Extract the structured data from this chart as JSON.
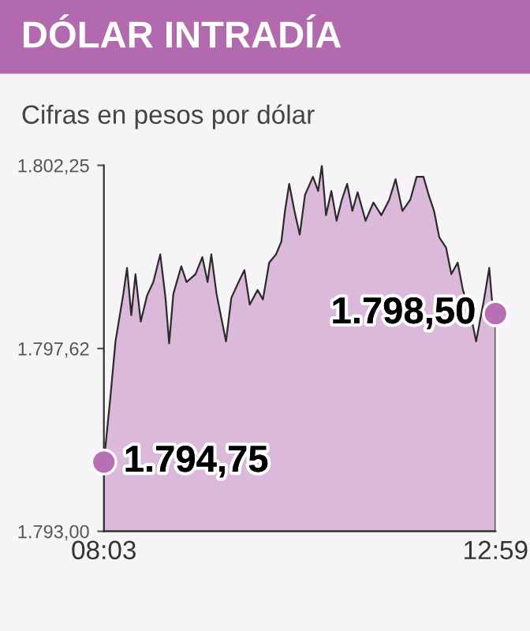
{
  "chart_data": {
    "type": "area",
    "title": "DÓLAR INTRADÍA",
    "subtitle": "Cifras en pesos por dólar",
    "x": [
      8.05,
      8.13,
      8.196,
      8.295,
      8.342,
      8.395,
      8.448,
      8.514,
      8.594,
      8.673,
      8.76,
      8.826,
      8.872,
      8.925,
      9.025,
      9.091,
      9.204,
      9.29,
      9.356,
      9.403,
      9.469,
      9.522,
      9.588,
      9.655,
      9.754,
      9.82,
      9.887,
      9.986,
      10.053,
      10.132,
      10.218,
      10.285,
      10.331,
      10.384,
      10.45,
      10.517,
      10.583,
      10.683,
      10.749,
      10.795,
      10.848,
      10.915,
      10.981,
      11.047,
      11.114,
      11.18,
      11.246,
      11.346,
      11.445,
      11.545,
      11.644,
      11.724,
      11.81,
      11.909,
      11.989,
      12.075,
      12.141,
      12.208,
      12.274,
      12.36,
      12.426,
      12.506,
      12.572,
      12.672,
      12.738,
      12.785,
      12.838,
      12.904,
      12.937,
      12.983
    ],
    "series": [
      {
        "color": "#dbb9da",
        "values": [
          1794.75,
          1796.35,
          1797.8,
          1799.0,
          1799.66,
          1798.46,
          1799.5,
          1798.3,
          1798.96,
          1799.3,
          1800.0,
          1798.9,
          1797.75,
          1799.0,
          1799.7,
          1799.3,
          1799.5,
          1799.93,
          1799.3,
          1800.0,
          1799.0,
          1798.46,
          1797.8,
          1798.9,
          1799.33,
          1799.6,
          1798.73,
          1799.1,
          1798.86,
          1799.79,
          1800.0,
          1800.32,
          1801.1,
          1801.78,
          1801.1,
          1800.5,
          1801.5,
          1801.96,
          1801.6,
          1802.25,
          1800.99,
          1801.6,
          1800.85,
          1801.38,
          1801.78,
          1801.1,
          1801.57,
          1800.85,
          1801.31,
          1800.99,
          1801.38,
          1801.9,
          1801.1,
          1801.38,
          1801.96,
          1801.96,
          1801.5,
          1801.1,
          1800.43,
          1800.17,
          1799.5,
          1799.79,
          1799.1,
          1798.46,
          1797.8,
          1798.3,
          1798.86,
          1799.66,
          1798.86,
          1798.5
        ]
      }
    ],
    "xlim": [
      8.05,
      12.983
    ],
    "xticks": [
      {
        "value": 8.05,
        "label": "08:03"
      },
      {
        "value": 12.983,
        "label": "12:59"
      }
    ],
    "ylim": [
      1793.0,
      1802.25
    ],
    "yticks": [
      {
        "value": 1793.0,
        "label": "1.793,00"
      },
      {
        "value": 1797.62,
        "label": "1.797,62"
      },
      {
        "value": 1802.25,
        "label": "1.802,25"
      }
    ],
    "grid": false,
    "legend": false,
    "annotations": [
      {
        "text": "1.794,75",
        "x": 8.05,
        "y": 1794.75
      },
      {
        "text": "1.798,50",
        "x": 12.983,
        "y": 1798.5
      }
    ]
  }
}
